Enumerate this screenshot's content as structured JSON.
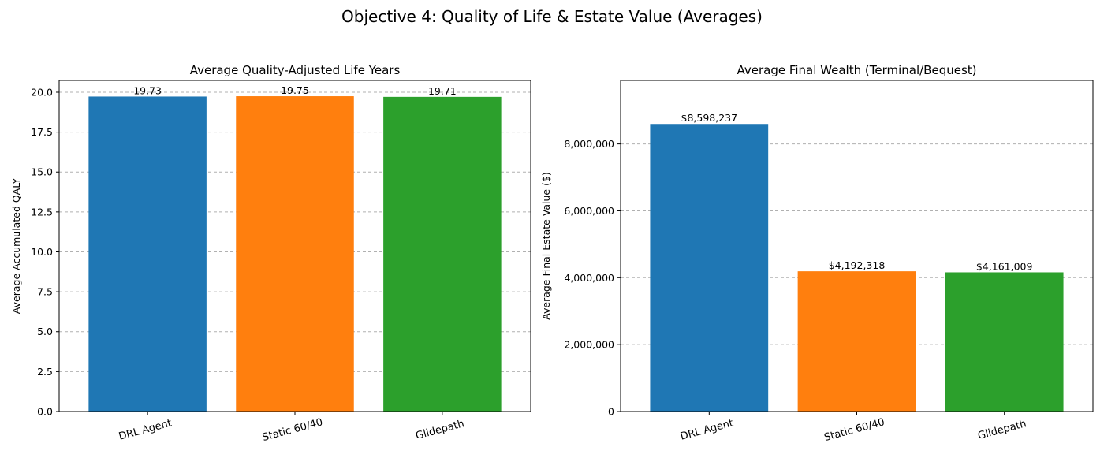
{
  "figure_title": "Objective 4: Quality of Life & Estate Value (Averages)",
  "chart_data": [
    {
      "type": "bar",
      "title": "Average Quality-Adjusted Life Years",
      "xlabel": "",
      "ylabel": "Average Accumulated QALY",
      "categories": [
        "DRL Agent",
        "Static 60/40",
        "Glidepath"
      ],
      "values": [
        19.73,
        19.75,
        19.71
      ],
      "data_labels": [
        "19.73",
        "19.75",
        "19.71"
      ],
      "colors": [
        "#1f77b4",
        "#ff7f0e",
        "#2ca02c"
      ],
      "ylim": [
        0,
        20.74
      ],
      "yticks": [
        0,
        2.5,
        5,
        7.5,
        10,
        12.5,
        15,
        17.5,
        20
      ],
      "ytick_labels": [
        "0.0",
        "2.5",
        "5.0",
        "7.5",
        "10.0",
        "12.5",
        "15.0",
        "17.5",
        "20.0"
      ],
      "grid": "y-dashed",
      "xtick_rotation": 15
    },
    {
      "type": "bar",
      "title": "Average Final Wealth (Terminal/Bequest)",
      "xlabel": "",
      "ylabel": "Average Final Estate Value ($)",
      "categories": [
        "DRL Agent",
        "Static 60/40",
        "Glidepath"
      ],
      "values": [
        8598237,
        4192318,
        4161009
      ],
      "data_labels": [
        "$8,598,237",
        "$4,192,318",
        "$4,161,009"
      ],
      "colors": [
        "#1f77b4",
        "#ff7f0e",
        "#2ca02c"
      ],
      "ylim": [
        0,
        9900000
      ],
      "yticks": [
        0,
        2000000,
        4000000,
        6000000,
        8000000
      ],
      "ytick_labels": [
        "0",
        "2,000,000",
        "4,000,000",
        "6,000,000",
        "8,000,000"
      ],
      "grid": "y-dashed",
      "xtick_rotation": 15
    }
  ]
}
